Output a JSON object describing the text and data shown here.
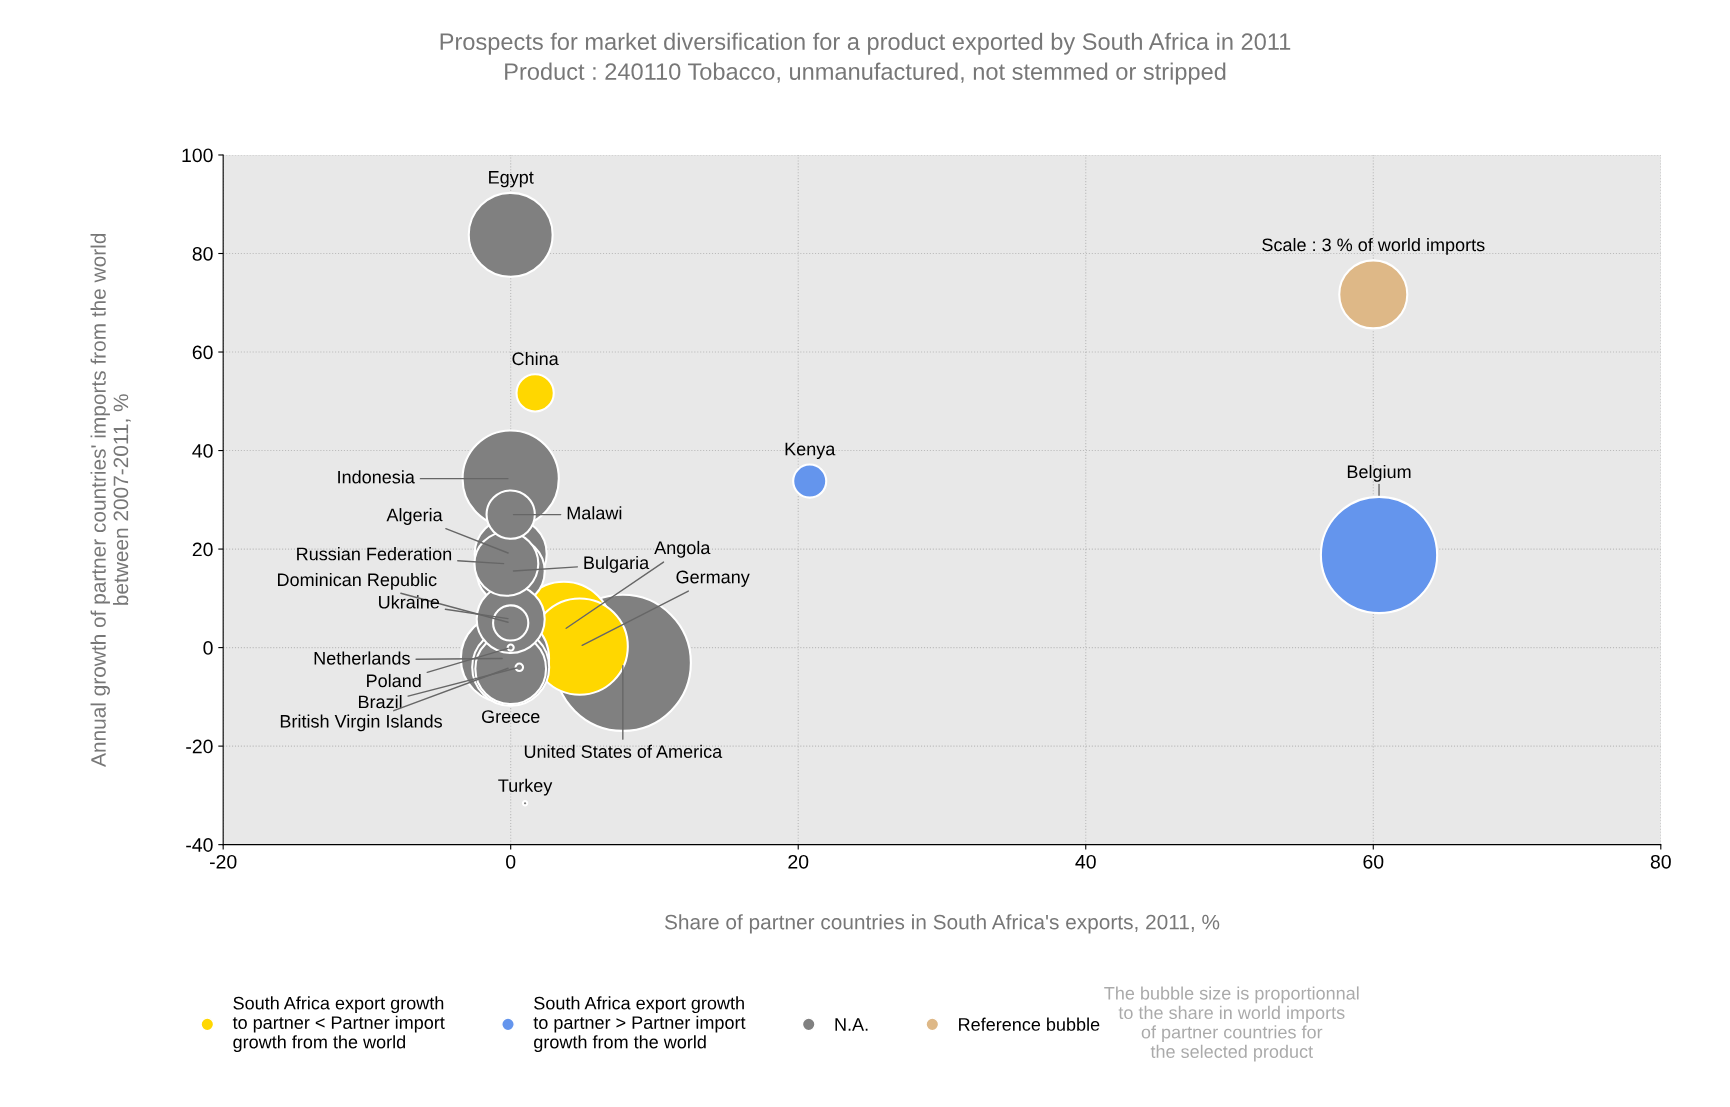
{
  "chart_data": {
    "type": "bubble",
    "title": "Prospects for market diversification for a product exported by South Africa in 2011",
    "subtitle": "Product : 240110 Tobacco, unmanufactured, not stemmed or stripped",
    "xlabel": "Share of partner countries in South Africa's exports, 2011, %",
    "ylabel": "Annual growth of partner countries' imports from the world\nbetween 2007-2011, %",
    "xlim": [
      -20,
      80
    ],
    "xticks": [
      -20,
      0,
      20,
      40,
      60,
      80
    ],
    "ylim": [
      -40,
      100
    ],
    "yticks": [
      -40,
      -20,
      0,
      20,
      40,
      60,
      80,
      100
    ],
    "grid": true,
    "legend": "bottom",
    "series": [
      {
        "name": "South Africa export growth\nto partner < Partner import\ngrowth from the world",
        "color": "#ffd700",
        "x": [
          1.7,
          3.7,
          4.8
        ],
        "values": [
          51.7,
          3.6,
          0.2
        ],
        "sizes": [
          0.075,
          0.5,
          0.5
        ]
      },
      {
        "name": "South Africa export growth\nto partner > Partner import\ngrowth from the world",
        "color": "#6495ed",
        "x": [
          20.8,
          60.4
        ],
        "values": [
          33.8,
          18.8
        ],
        "sizes": [
          0.059,
          0.73
        ]
      },
      {
        "name": "N.A.",
        "color": "#808080",
        "x": [
          7.8,
          0,
          0,
          -0.4,
          0,
          0,
          0,
          -0.3,
          0,
          0,
          0,
          0,
          0.6,
          0,
          1
        ],
        "values": [
          -3.1,
          83.8,
          34.3,
          -2.2,
          -4,
          -4.3,
          19,
          17,
          15.5,
          5.8,
          5,
          27,
          -4,
          0,
          -31.6
        ],
        "sizes": [
          1,
          0.38,
          0.5,
          0.42,
          0.32,
          0.27,
          0.28,
          0.22,
          0.25,
          0.25,
          0.067,
          0.126,
          0.003,
          0.002,
          0.001
        ]
      },
      {
        "name": "Reference bubble",
        "color": "#deb887",
        "x": [
          60
        ],
        "values": [
          71.7
        ],
        "sizes": [
          0.25
        ]
      }
    ],
    "annotations": [
      {
        "text": "Egypt",
        "x": 0,
        "y": 83.8
      },
      {
        "text": "China",
        "x": 1.7,
        "y": 51.7
      },
      {
        "text": "Kenya",
        "x": 20.8,
        "y": 33.8
      },
      {
        "text": "Belgium",
        "x": 60.4,
        "y": 18.8
      },
      {
        "text": "Scale : 3 % of world imports",
        "x": 60,
        "y": 71.7
      },
      {
        "text": "Indonesia",
        "x": 0,
        "y": 34.3
      },
      {
        "text": "Malawi",
        "x": 0,
        "y": 27
      },
      {
        "text": "Algeria",
        "x": 0,
        "y": 19
      },
      {
        "text": "Russian Federation",
        "x": -0.3,
        "y": 17
      },
      {
        "text": "Bulgaria",
        "x": 0,
        "y": 15.5
      },
      {
        "text": "Angola",
        "x": 3.7,
        "y": 3.6
      },
      {
        "text": "Germany",
        "x": 4.8,
        "y": 0.2
      },
      {
        "text": "Dominican Republic",
        "x": 0,
        "y": 5
      },
      {
        "text": "Ukraine",
        "x": 0,
        "y": 5.8
      },
      {
        "text": "Netherlands",
        "x": -0.4,
        "y": -2.2
      },
      {
        "text": "Poland",
        "x": 0,
        "y": 0
      },
      {
        "text": "Brazil",
        "x": 0.6,
        "y": -4
      },
      {
        "text": "British Virgin Islands",
        "x": 0,
        "y": -4
      },
      {
        "text": "Greece",
        "x": 0,
        "y": -4.3
      },
      {
        "text": "United States of America",
        "x": 7.8,
        "y": -3.1
      },
      {
        "text": "Turkey",
        "x": 1,
        "y": -31.6
      },
      "The bubble size is proportionnal\nto the share in world imports\nof partner countries for\nthe selected product"
    ]
  }
}
